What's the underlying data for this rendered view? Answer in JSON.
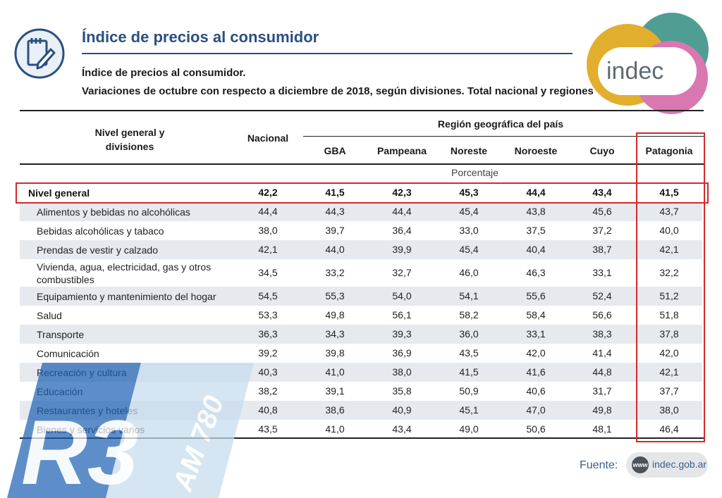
{
  "header": {
    "title": "Índice de precios al consumidor",
    "subtitle_line1": "Índice de precios al consumidor.",
    "subtitle_line2": "Variaciones de octubre con respecto a diciembre de 2018, según divisiones. Total nacional y regiones",
    "icon": "notepad-pencil-icon"
  },
  "logo": {
    "text": "indec",
    "colors": [
      "#e2ae2e",
      "#4f9e94",
      "#d877b0"
    ]
  },
  "table": {
    "col_label": "Nivel general y divisiones",
    "col_label_line1": "Nivel general y",
    "col_label_line2": "divisiones",
    "col_nacional": "Nacional",
    "region_group": "Región geográfica del país",
    "regions": [
      "GBA",
      "Pampeana",
      "Noreste",
      "Noroeste",
      "Cuyo",
      "Patagonia"
    ],
    "unit": "Porcentaje",
    "total": {
      "label": "Nivel general",
      "values": [
        "42,2",
        "41,5",
        "42,3",
        "45,3",
        "44,4",
        "43,4",
        "41,5"
      ]
    },
    "rows": [
      {
        "label": "Alimentos y bebidas no alcohólicas",
        "values": [
          "44,4",
          "44,3",
          "44,4",
          "45,4",
          "43,8",
          "45,6",
          "43,7"
        ]
      },
      {
        "label": "Bebidas alcohólicas y tabaco",
        "values": [
          "38,0",
          "39,7",
          "36,4",
          "33,0",
          "37,5",
          "37,2",
          "40,0"
        ]
      },
      {
        "label": "Prendas de vestir y calzado",
        "values": [
          "42,1",
          "44,0",
          "39,9",
          "45,4",
          "40,4",
          "38,7",
          "42,1"
        ]
      },
      {
        "label": "Vivienda, agua, electricidad, gas y otros",
        "label2": "combustibles",
        "values": [
          "34,5",
          "33,2",
          "32,7",
          "46,0",
          "46,3",
          "33,1",
          "32,2"
        ]
      },
      {
        "label": "Equipamiento y mantenimiento del hogar",
        "values": [
          "54,5",
          "55,3",
          "54,0",
          "54,1",
          "55,6",
          "52,4",
          "51,2"
        ]
      },
      {
        "label": "Salud",
        "values": [
          "53,3",
          "49,8",
          "56,1",
          "58,2",
          "58,4",
          "56,6",
          "51,8"
        ]
      },
      {
        "label": "Transporte",
        "values": [
          "36,3",
          "34,3",
          "39,3",
          "36,0",
          "33,1",
          "38,3",
          "37,8"
        ]
      },
      {
        "label": "Comunicación",
        "values": [
          "39,2",
          "39,8",
          "36,9",
          "43,5",
          "42,0",
          "41,4",
          "42,0"
        ]
      },
      {
        "label": "Recreación y cultura",
        "values": [
          "40,3",
          "41,0",
          "38,0",
          "41,5",
          "41,6",
          "44,8",
          "42,1"
        ]
      },
      {
        "label": "Educación",
        "values": [
          "38,2",
          "39,1",
          "35,8",
          "50,9",
          "40,6",
          "31,7",
          "37,7"
        ]
      },
      {
        "label": "Restaurantes y hoteles",
        "values": [
          "40,8",
          "38,6",
          "40,9",
          "45,1",
          "47,0",
          "49,8",
          "38,0"
        ]
      },
      {
        "label": "Bienes y servicios varios",
        "values": [
          "43,5",
          "41,0",
          "43,4",
          "49,0",
          "50,6",
          "48,1",
          "46,4"
        ]
      }
    ]
  },
  "highlight_color": "#d42a2a",
  "watermark": {
    "text1": "R3",
    "text2": "AM 780"
  },
  "footer": {
    "fuente_label": "Fuente:",
    "www": "www",
    "url": "indec.gob.ar"
  }
}
